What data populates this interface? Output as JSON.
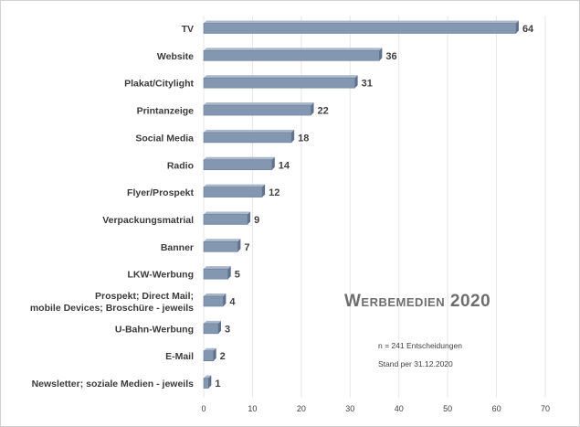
{
  "chart_data": {
    "type": "bar",
    "orientation": "horizontal",
    "title": "Werbemedien 2020",
    "categories": [
      "TV",
      "Website",
      "Plakat/Citylight",
      "Printanzeige",
      "Social Media",
      "Radio",
      "Flyer/Prospekt",
      "Verpackungsmatrial",
      "Banner",
      "LKW-Werbung",
      "Prospekt; Direct Mail;\nmobile Devices;  Broschüre - jeweils",
      "U-Bahn-Werbung",
      "E-Mail",
      "Newsletter; soziale Medien - jeweils"
    ],
    "values": [
      64,
      36,
      31,
      22,
      18,
      14,
      12,
      9,
      7,
      5,
      4,
      3,
      2,
      1
    ],
    "xlim": [
      0,
      70
    ],
    "xticks": [
      0,
      10,
      20,
      30,
      40,
      50,
      60,
      70
    ],
    "grid": true,
    "bar_color": "#8497b0",
    "annotations": {
      "n": "n = 241 Entscheidungen",
      "stand": "Stand per 31.12.2020"
    }
  }
}
